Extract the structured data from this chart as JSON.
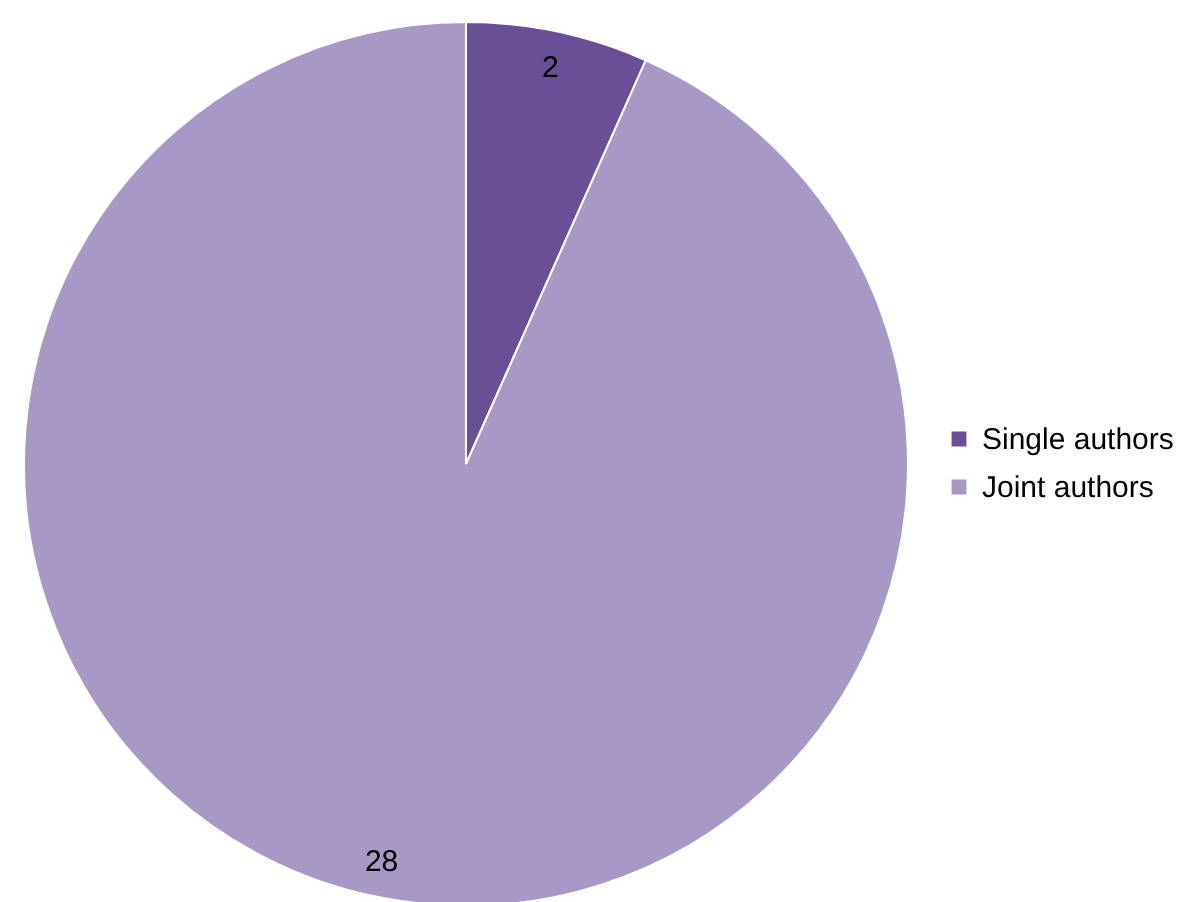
{
  "chart_data": {
    "type": "pie",
    "categories": [
      "Single authors",
      "Joint authors"
    ],
    "values": [
      2,
      28
    ],
    "colors": [
      "#6b4f96",
      "#a898c6"
    ],
    "data_labels": true,
    "legend": "right"
  }
}
